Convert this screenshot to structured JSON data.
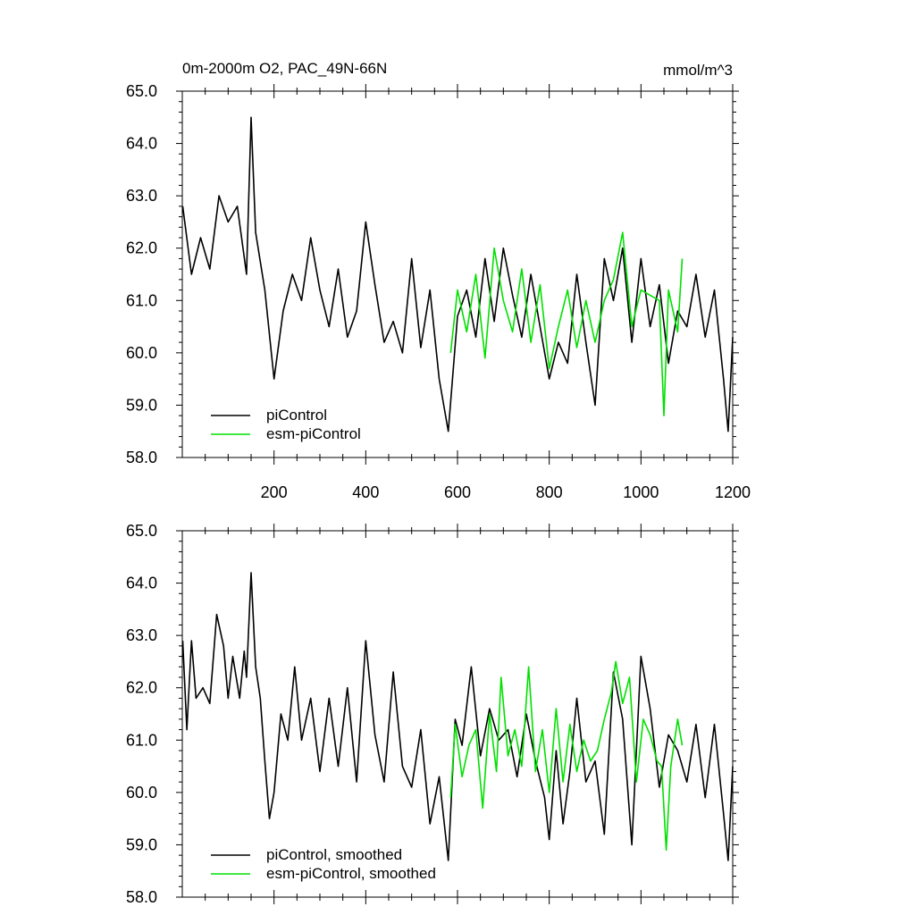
{
  "figure": {
    "title_left": "0m-2000m O2, PAC_49N-66N",
    "title_right": "mmol/m^3"
  },
  "colors": {
    "picontrol": "#000000",
    "esm_picontrol": "#00e000",
    "axis": "#000000",
    "background": "#ffffff"
  },
  "chart_data": [
    {
      "type": "line",
      "title": "0m-2000m O2, PAC_49N-66N",
      "units": "mmol/m^3",
      "xlabel": "",
      "ylabel": "",
      "xlim": [
        0,
        1200
      ],
      "ylim": [
        58.0,
        65.0
      ],
      "xticks": [
        200,
        400,
        600,
        800,
        1000,
        1200
      ],
      "xtick_labels": [
        "200",
        "400",
        "600",
        "800",
        "1000",
        "1200"
      ],
      "yticks": [
        58.0,
        59.0,
        60.0,
        61.0,
        62.0,
        63.0,
        64.0,
        65.0
      ],
      "ytick_labels": [
        "58.0",
        "59.0",
        "60.0",
        "61.0",
        "62.0",
        "63.0",
        "64.0",
        "65.0"
      ],
      "grid": false,
      "legend_position": "bottom-left",
      "series": [
        {
          "name": "piControl",
          "color": "#000000",
          "x": [
            1,
            20,
            40,
            60,
            80,
            100,
            120,
            140,
            150,
            160,
            180,
            200,
            220,
            240,
            260,
            280,
            300,
            320,
            340,
            360,
            380,
            400,
            420,
            440,
            460,
            480,
            500,
            520,
            540,
            560,
            580,
            600,
            620,
            640,
            660,
            680,
            700,
            720,
            740,
            760,
            780,
            800,
            820,
            840,
            860,
            880,
            900,
            920,
            940,
            960,
            980,
            1000,
            1020,
            1040,
            1060,
            1080,
            1100,
            1120,
            1140,
            1160,
            1180,
            1190,
            1200
          ],
          "values": [
            62.8,
            61.5,
            62.2,
            61.6,
            63.0,
            62.5,
            62.8,
            61.5,
            64.5,
            62.3,
            61.2,
            59.5,
            60.8,
            61.5,
            61.0,
            62.2,
            61.2,
            60.5,
            61.6,
            60.3,
            60.8,
            62.5,
            61.3,
            60.2,
            60.6,
            60.0,
            61.8,
            60.1,
            61.2,
            59.5,
            58.5,
            60.7,
            61.2,
            60.3,
            61.8,
            60.6,
            62.0,
            61.1,
            60.3,
            61.5,
            60.5,
            59.5,
            60.2,
            59.8,
            61.5,
            60.2,
            59.0,
            61.8,
            61.0,
            62.0,
            60.2,
            61.8,
            60.5,
            61.3,
            59.8,
            60.8,
            60.5,
            61.5,
            60.3,
            61.2,
            59.5,
            58.5,
            60.3
          ]
        },
        {
          "name": "esm-piControl",
          "color": "#00e000",
          "x": [
            585,
            600,
            620,
            640,
            660,
            680,
            700,
            720,
            740,
            760,
            780,
            800,
            820,
            840,
            860,
            880,
            900,
            920,
            940,
            960,
            980,
            1000,
            1020,
            1040,
            1050,
            1060,
            1080,
            1090
          ],
          "values": [
            60.0,
            61.2,
            60.4,
            61.5,
            59.9,
            62.0,
            61.0,
            60.4,
            61.6,
            60.2,
            61.3,
            59.7,
            60.5,
            61.2,
            60.1,
            61.0,
            60.2,
            61.0,
            61.4,
            62.3,
            60.5,
            61.2,
            61.1,
            61.0,
            58.8,
            61.2,
            60.4,
            61.8
          ]
        }
      ]
    },
    {
      "type": "line",
      "title": "",
      "xlabel": "",
      "ylabel": "",
      "xlim": [
        0,
        1200
      ],
      "ylim": [
        58.0,
        65.0
      ],
      "xticks": [
        200,
        400,
        600,
        800,
        1000,
        1200
      ],
      "xtick_labels": [],
      "yticks": [
        58.0,
        59.0,
        60.0,
        61.0,
        62.0,
        63.0,
        64.0,
        65.0
      ],
      "ytick_labels": [
        "58.0",
        "59.0",
        "60.0",
        "61.0",
        "62.0",
        "63.0",
        "64.0",
        "65.0"
      ],
      "grid": false,
      "legend_position": "bottom-left",
      "series": [
        {
          "name": "piControl, smoothed",
          "color": "#000000",
          "x": [
            1,
            10,
            20,
            30,
            45,
            60,
            75,
            90,
            100,
            110,
            125,
            135,
            140,
            150,
            160,
            170,
            180,
            190,
            200,
            215,
            230,
            245,
            260,
            280,
            300,
            320,
            340,
            360,
            380,
            400,
            420,
            440,
            460,
            480,
            500,
            520,
            540,
            560,
            580,
            595,
            610,
            630,
            650,
            670,
            690,
            710,
            730,
            750,
            770,
            790,
            800,
            815,
            830,
            845,
            860,
            880,
            900,
            920,
            940,
            960,
            980,
            1000,
            1020,
            1040,
            1060,
            1080,
            1100,
            1120,
            1140,
            1160,
            1180,
            1190,
            1200
          ],
          "values": [
            62.9,
            61.2,
            62.9,
            61.8,
            62.0,
            61.7,
            63.4,
            62.8,
            61.8,
            62.6,
            61.8,
            62.7,
            62.2,
            64.2,
            62.4,
            61.8,
            60.6,
            59.5,
            60.0,
            61.5,
            61.0,
            62.4,
            61.0,
            61.8,
            60.4,
            61.8,
            60.5,
            62.0,
            60.2,
            62.9,
            61.1,
            60.2,
            62.3,
            60.5,
            60.1,
            61.2,
            59.4,
            60.3,
            58.7,
            61.4,
            60.9,
            62.4,
            60.7,
            61.6,
            61.0,
            61.2,
            60.3,
            61.5,
            60.6,
            59.9,
            59.1,
            60.8,
            59.4,
            60.4,
            61.8,
            60.2,
            60.6,
            59.2,
            62.3,
            61.4,
            59.0,
            62.6,
            61.6,
            60.1,
            61.1,
            60.8,
            60.2,
            61.3,
            59.9,
            61.3,
            59.6,
            58.7,
            60.5
          ]
        },
        {
          "name": "esm-piControl, smoothed",
          "color": "#00e000",
          "x": [
            585,
            595,
            610,
            625,
            640,
            655,
            670,
            685,
            695,
            710,
            725,
            740,
            755,
            770,
            785,
            800,
            815,
            830,
            845,
            860,
            875,
            890,
            905,
            920,
            935,
            945,
            960,
            975,
            990,
            1005,
            1020,
            1035,
            1045,
            1055,
            1065,
            1080,
            1090
          ],
          "values": [
            59.9,
            61.3,
            60.3,
            60.9,
            61.2,
            59.7,
            61.5,
            60.4,
            62.2,
            60.7,
            61.2,
            60.5,
            62.4,
            60.4,
            61.2,
            60.0,
            61.6,
            60.2,
            61.3,
            60.4,
            61.0,
            60.6,
            60.8,
            61.4,
            61.9,
            62.5,
            61.7,
            62.2,
            60.2,
            61.4,
            61.1,
            60.6,
            60.5,
            58.9,
            60.5,
            61.4,
            60.9
          ]
        }
      ]
    }
  ]
}
